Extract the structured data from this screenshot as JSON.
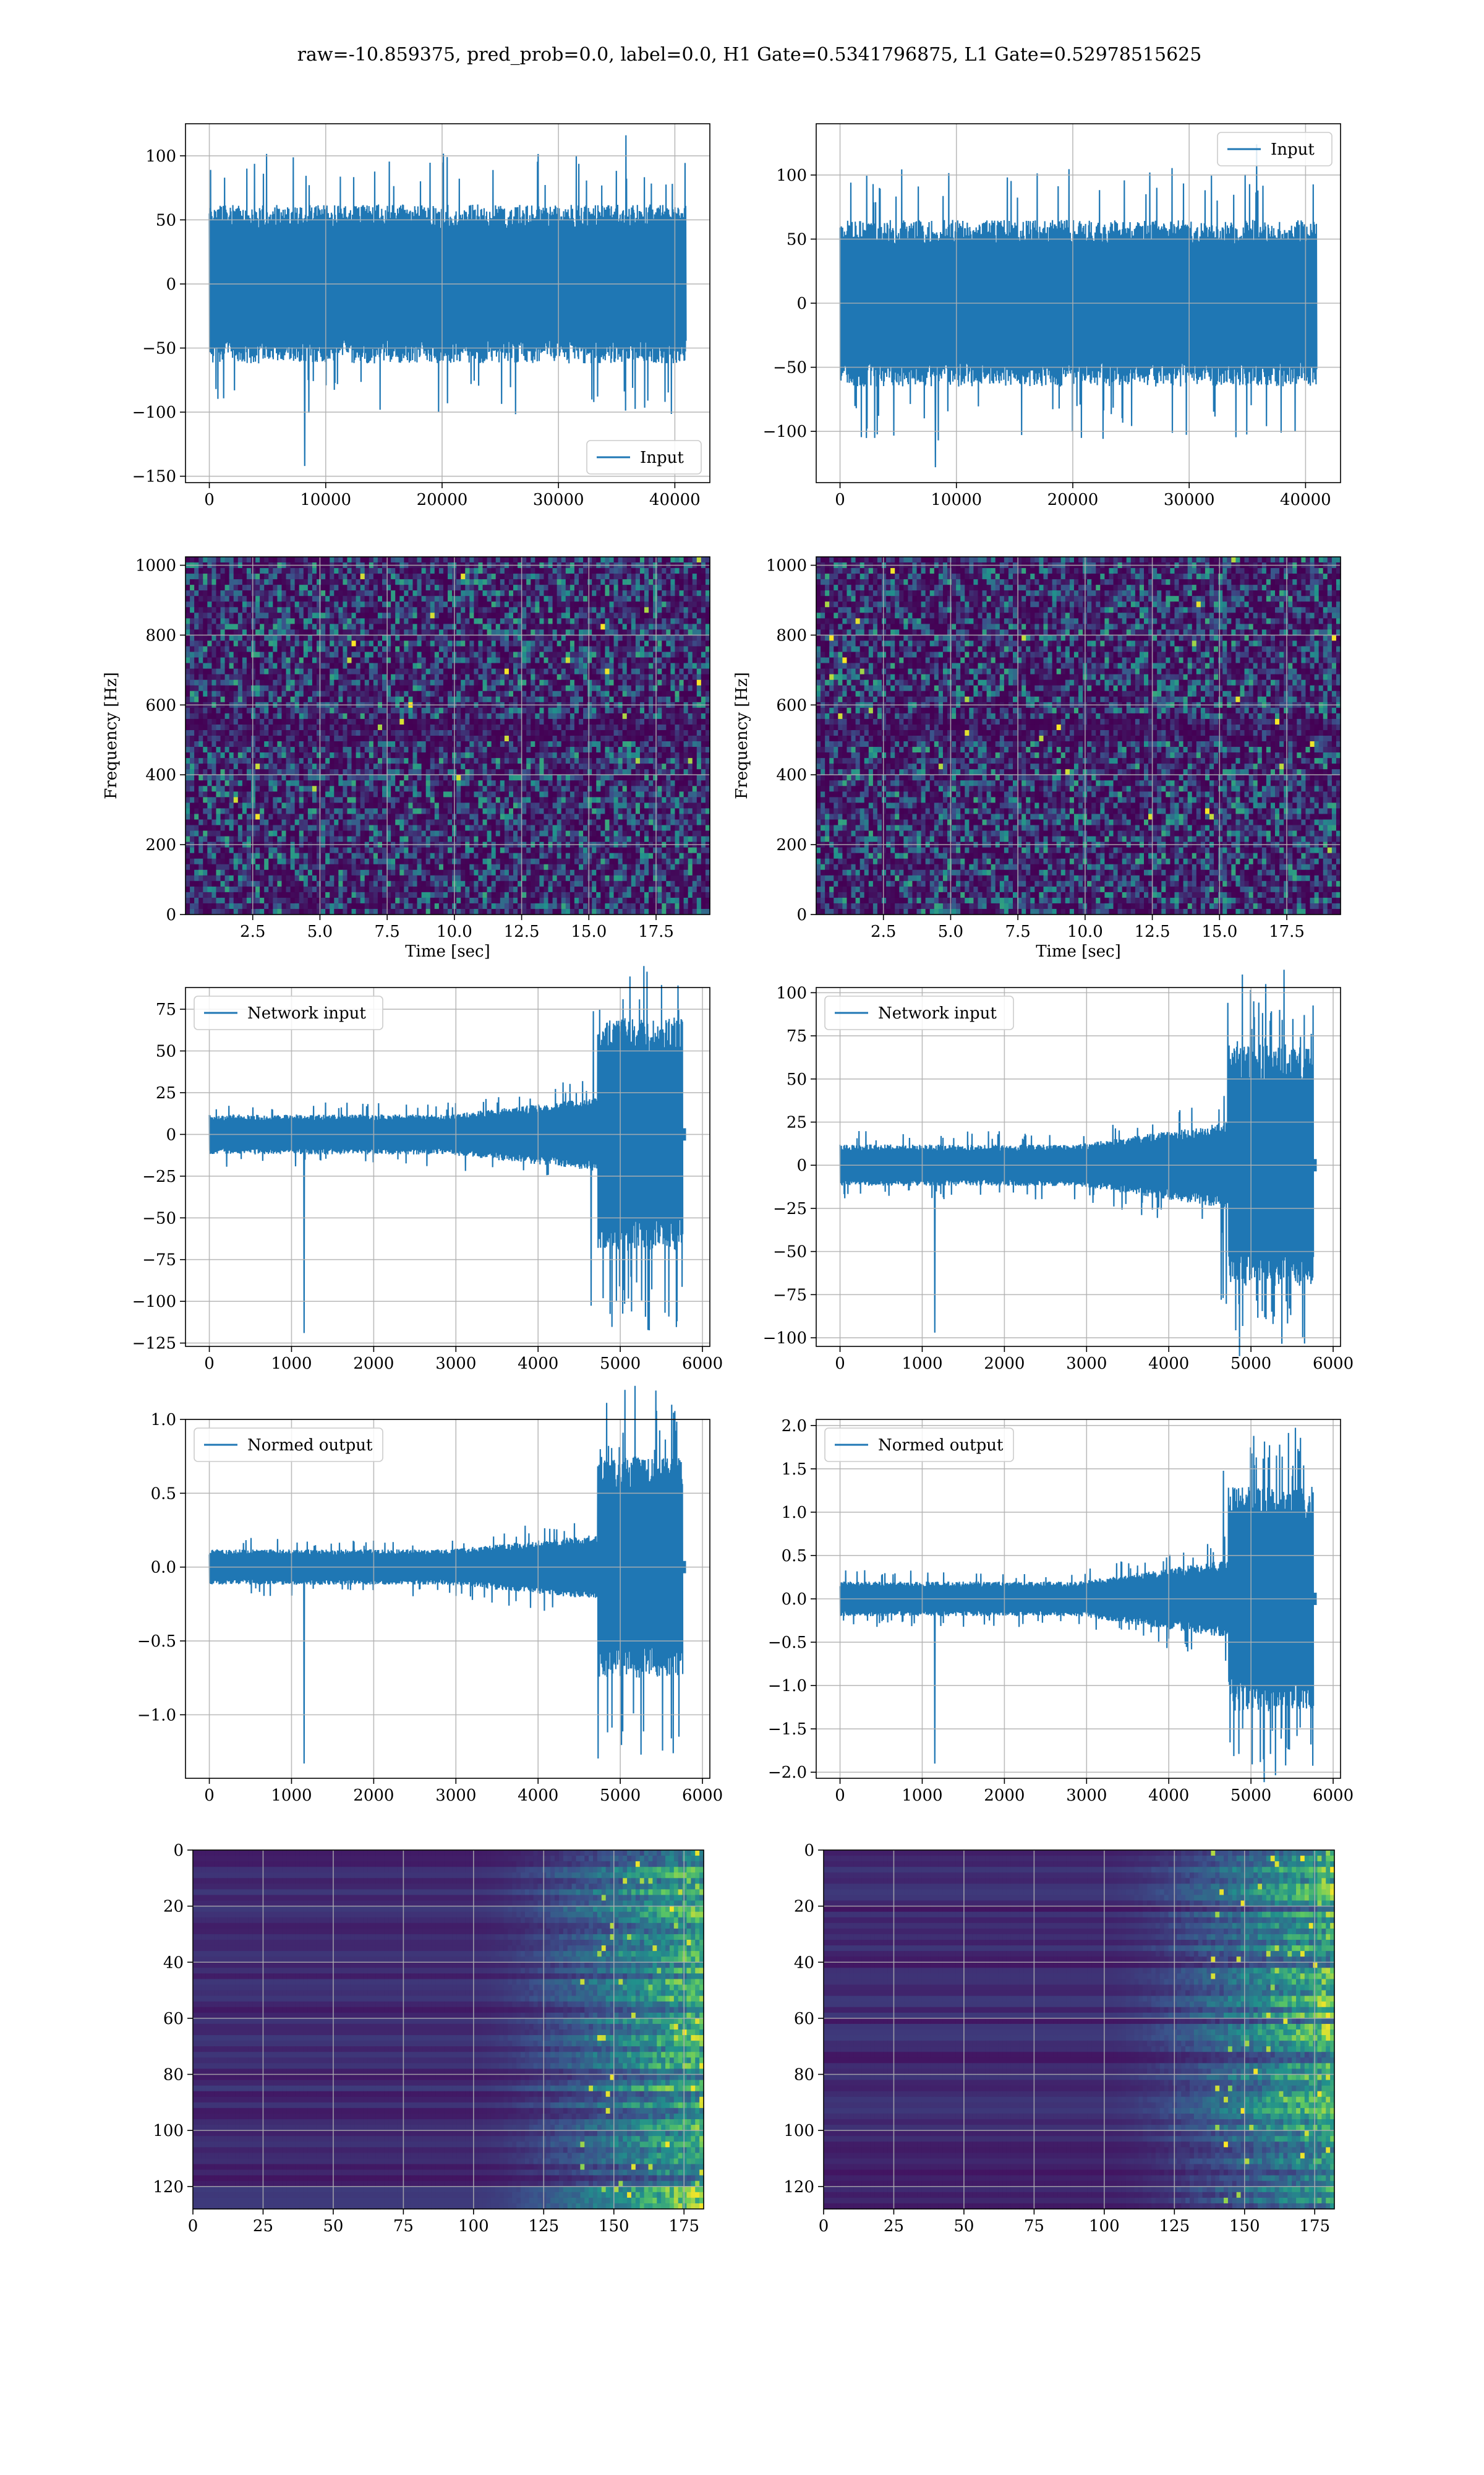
{
  "figure": {
    "title": "raw=-10.859375, pred_prob=0.0, label=0.0, H1 Gate=0.5341796875, L1 Gate=0.52978515625"
  },
  "colors": {
    "series": "#1f77b4",
    "grid": "#b0b0b0",
    "axes": "#000000"
  },
  "chart_data": [
    {
      "id": "p0",
      "type": "line",
      "xlim": [
        -2048,
        43008
      ],
      "ylim": [
        -155,
        125
      ],
      "xticks": [
        0,
        10000,
        20000,
        30000,
        40000
      ],
      "yticks": [
        -150,
        -100,
        -50,
        0,
        50,
        100
      ],
      "legend": {
        "loc": "lower-right",
        "entries": [
          "Input"
        ]
      },
      "series": [
        {
          "name": "Input",
          "x_range": [
            0,
            40960
          ],
          "amplitude": 62,
          "spike_max": 116,
          "spike_min": -142
        }
      ],
      "xlabel": "",
      "ylabel": ""
    },
    {
      "id": "p1",
      "type": "line",
      "xlim": [
        -2048,
        43008
      ],
      "ylim": [
        -140,
        140
      ],
      "xticks": [
        0,
        10000,
        20000,
        30000,
        40000
      ],
      "yticks": [
        -100,
        -50,
        0,
        50,
        100
      ],
      "legend": {
        "loc": "upper-right",
        "entries": [
          "Input"
        ]
      },
      "series": [
        {
          "name": "Input",
          "x_range": [
            0,
            40960
          ],
          "amplitude": 65,
          "spike_max": 124,
          "spike_min": -128
        }
      ],
      "xlabel": "",
      "ylabel": ""
    },
    {
      "id": "p2",
      "type": "heatmap",
      "xlim": [
        0,
        19.5
      ],
      "ylim": [
        0,
        1024
      ],
      "xticks": [
        2.5,
        5.0,
        7.5,
        10.0,
        12.5,
        15.0,
        17.5
      ],
      "yticks": [
        0,
        200,
        400,
        600,
        800,
        1000
      ],
      "xlabel": "Time [sec]",
      "ylabel": "Frequency [Hz]"
    },
    {
      "id": "p3",
      "type": "heatmap",
      "xlim": [
        0,
        19.5
      ],
      "ylim": [
        0,
        1024
      ],
      "xticks": [
        2.5,
        5.0,
        7.5,
        10.0,
        12.5,
        15.0,
        17.5
      ],
      "yticks": [
        0,
        200,
        400,
        600,
        800,
        1000
      ],
      "xlabel": "Time [sec]",
      "ylabel": "Frequency [Hz]"
    },
    {
      "id": "p4",
      "type": "line",
      "xlim": [
        -290,
        6090
      ],
      "ylim": [
        -127,
        88
      ],
      "xticks": [
        0,
        1000,
        2000,
        3000,
        4000,
        5000,
        6000
      ],
      "yticks": [
        -125,
        -100,
        -75,
        -50,
        -25,
        0,
        25,
        50,
        75
      ],
      "legend": {
        "loc": "upper-left",
        "entries": [
          "Network input"
        ]
      },
      "series": [
        {
          "name": "Network input",
          "x_range": [
            0,
            5760
          ],
          "env_early": 12,
          "env_mid": 22,
          "env_late": 70,
          "spike_max": 81,
          "spike_min": -119,
          "tail_end": 5800
        }
      ],
      "xlabel": "",
      "ylabel": ""
    },
    {
      "id": "p5",
      "type": "line",
      "xlim": [
        -290,
        6090
      ],
      "ylim": [
        -105,
        103
      ],
      "xticks": [
        0,
        1000,
        2000,
        3000,
        4000,
        5000,
        6000
      ],
      "yticks": [
        -100,
        -75,
        -50,
        -25,
        0,
        25,
        50,
        75,
        100
      ],
      "legend": {
        "loc": "upper-left",
        "entries": [
          "Network input"
        ]
      },
      "series": [
        {
          "name": "Network input",
          "x_range": [
            0,
            5760
          ],
          "env_early": 12,
          "env_mid": 25,
          "env_late": 70,
          "spike_max": 95,
          "spike_min": -97,
          "tail_end": 5800
        }
      ],
      "xlabel": "",
      "ylabel": ""
    },
    {
      "id": "p6",
      "type": "line",
      "xlim": [
        -290,
        6090
      ],
      "ylim": [
        -1.43,
        1.0
      ],
      "xticks": [
        0,
        1000,
        2000,
        3000,
        4000,
        5000,
        6000
      ],
      "yticks": [
        -1.0,
        -0.5,
        0.0,
        0.5,
        1.0
      ],
      "legend": {
        "loc": "upper-left",
        "entries": [
          "Normed output"
        ]
      },
      "series": [
        {
          "name": "Normed output",
          "x_range": [
            0,
            5760
          ],
          "env_early": 0.12,
          "env_mid": 0.22,
          "env_late": 0.75,
          "spike_max": 0.91,
          "spike_min": -1.33,
          "tail_end": 5800
        }
      ],
      "xlabel": "",
      "ylabel": ""
    },
    {
      "id": "p7",
      "type": "line",
      "xlim": [
        -290,
        6090
      ],
      "ylim": [
        -2.07,
        2.07
      ],
      "xticks": [
        0,
        1000,
        2000,
        3000,
        4000,
        5000,
        6000
      ],
      "yticks": [
        -2.0,
        -1.5,
        -1.0,
        -0.5,
        0.0,
        0.5,
        1.0,
        1.5,
        2.0
      ],
      "legend": {
        "loc": "upper-left",
        "entries": [
          "Normed output"
        ]
      },
      "series": [
        {
          "name": "Normed output",
          "x_range": [
            0,
            5760
          ],
          "env_early": 0.2,
          "env_mid": 0.45,
          "env_late": 1.3,
          "spike_max": 1.88,
          "spike_min": -1.9,
          "tail_end": 5800
        }
      ],
      "xlabel": "",
      "ylabel": ""
    },
    {
      "id": "p8",
      "type": "heatmap",
      "xlim": [
        0,
        182
      ],
      "ylim": [
        128,
        0
      ],
      "xticks": [
        0,
        25,
        50,
        75,
        100,
        125,
        150,
        175
      ],
      "yticks": [
        0,
        20,
        40,
        60,
        80,
        100,
        120
      ],
      "xlabel": "",
      "ylabel": ""
    },
    {
      "id": "p9",
      "type": "heatmap",
      "xlim": [
        0,
        182
      ],
      "ylim": [
        128,
        0
      ],
      "xticks": [
        0,
        25,
        50,
        75,
        100,
        125,
        150,
        175
      ],
      "yticks": [
        0,
        20,
        40,
        60,
        80,
        100,
        120
      ],
      "xlabel": "",
      "ylabel": ""
    }
  ]
}
